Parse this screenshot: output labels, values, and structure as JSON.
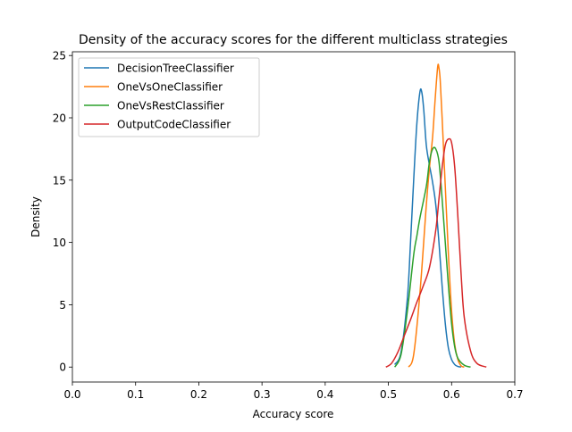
{
  "chart_data": {
    "type": "line",
    "title": "Density of the accuracy scores for the different multiclass strategies",
    "xlabel": "Accuracy score",
    "ylabel": "Density",
    "xlim": [
      0.0,
      0.7
    ],
    "ylim": [
      -1.2,
      25.3
    ],
    "xticks": [
      0.0,
      0.1,
      0.2,
      0.3,
      0.4,
      0.5,
      0.6,
      0.7
    ],
    "xtick_labels": [
      "0.0",
      "0.1",
      "0.2",
      "0.3",
      "0.4",
      "0.5",
      "0.6",
      "0.7"
    ],
    "yticks": [
      0,
      5,
      10,
      15,
      20,
      25
    ],
    "ytick_labels": [
      "0",
      "5",
      "10",
      "15",
      "20",
      "25"
    ],
    "grid": false,
    "legend_position": "upper-left",
    "series": [
      {
        "name": "DecisionTreeClassifier",
        "color": "#1f77b4",
        "x": [
          0.51,
          0.52,
          0.53,
          0.535,
          0.54,
          0.545,
          0.55,
          0.553,
          0.556,
          0.56,
          0.565,
          0.57,
          0.575,
          0.58,
          0.585,
          0.59,
          0.595,
          0.6,
          0.605,
          0.61,
          0.615
        ],
        "y": [
          0.2,
          1.2,
          5.5,
          10.0,
          15.0,
          19.5,
          22.1,
          22.0,
          20.6,
          17.8,
          16.2,
          14.8,
          13.0,
          10.0,
          6.5,
          3.5,
          1.5,
          0.6,
          0.2,
          0.05,
          0.0
        ]
      },
      {
        "name": "OneVsOneClassifier",
        "color": "#ff7f0e",
        "x": [
          0.532,
          0.54,
          0.55,
          0.56,
          0.565,
          0.57,
          0.574,
          0.578,
          0.58,
          0.582,
          0.585,
          0.59,
          0.595,
          0.6,
          0.605,
          0.61,
          0.615,
          0.62
        ],
        "y": [
          0.0,
          1.0,
          6.0,
          13.0,
          16.0,
          18.5,
          21.5,
          24.1,
          24.0,
          23.0,
          20.0,
          14.5,
          9.0,
          4.5,
          1.8,
          0.6,
          0.1,
          0.0
        ]
      },
      {
        "name": "OneVsRestClassifier",
        "color": "#2ca02c",
        "x": [
          0.51,
          0.52,
          0.53,
          0.54,
          0.545,
          0.55,
          0.56,
          0.565,
          0.57,
          0.575,
          0.58,
          0.585,
          0.59,
          0.595,
          0.6,
          0.605,
          0.61,
          0.62,
          0.63
        ],
        "y": [
          0.0,
          1.0,
          4.5,
          9.0,
          10.5,
          12.0,
          14.5,
          16.5,
          17.5,
          17.5,
          16.5,
          13.5,
          10.0,
          6.5,
          3.5,
          1.6,
          0.7,
          0.15,
          0.0
        ]
      },
      {
        "name": "OutputCodeClassifier",
        "color": "#d62728",
        "x": [
          0.496,
          0.505,
          0.515,
          0.525,
          0.535,
          0.545,
          0.555,
          0.565,
          0.575,
          0.58,
          0.585,
          0.59,
          0.595,
          0.6,
          0.605,
          0.61,
          0.615,
          0.62,
          0.63,
          0.64,
          0.655
        ],
        "y": [
          0.0,
          0.3,
          1.2,
          2.5,
          3.8,
          5.2,
          6.5,
          8.0,
          11.0,
          13.5,
          16.0,
          17.8,
          18.3,
          18.0,
          16.0,
          12.0,
          7.5,
          4.0,
          1.3,
          0.3,
          0.0
        ]
      }
    ]
  }
}
